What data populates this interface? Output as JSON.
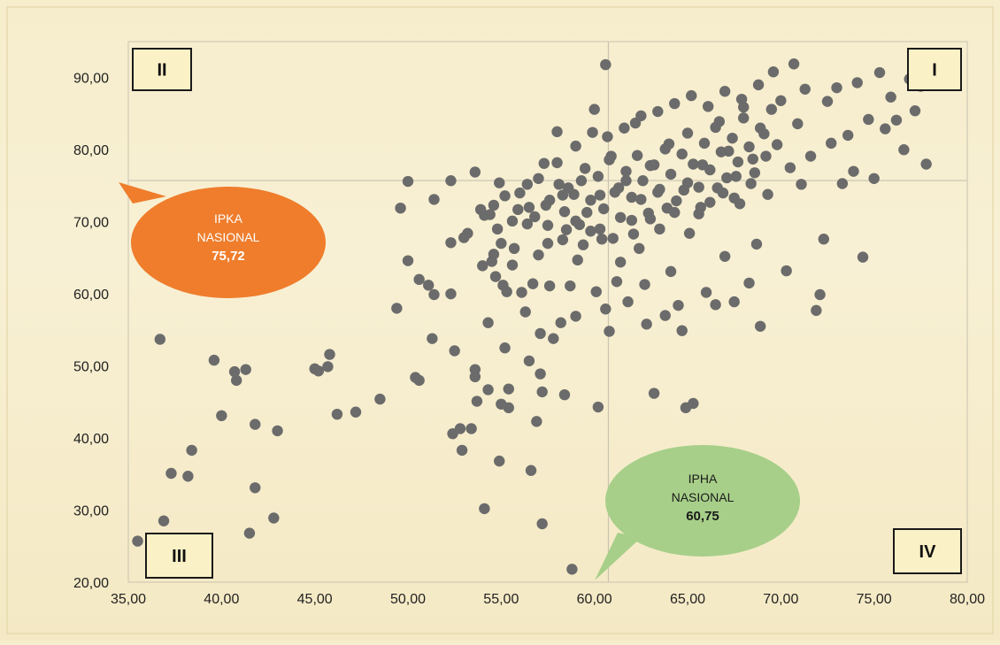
{
  "chart_data": {
    "type": "scatter",
    "xlim": [
      35,
      80
    ],
    "ylim": [
      20,
      95
    ],
    "x_ticks": [
      "35,00",
      "40,00",
      "45,00",
      "50,00",
      "55,00",
      "60,00",
      "65,00",
      "70,00",
      "75,00",
      "80,00"
    ],
    "y_ticks": [
      "20,00",
      "30,00",
      "40,00",
      "50,00",
      "60,00",
      "70,00",
      "80,00",
      "90,00"
    ],
    "grid": false,
    "point_color": "#6b6b6b",
    "reference_lines": {
      "x": 60.75,
      "y": 75.72
    },
    "quadrants": [
      {
        "id": "I",
        "label": "I",
        "corner": "top-right"
      },
      {
        "id": "II",
        "label": "II",
        "corner": "top-left"
      },
      {
        "id": "III",
        "label": "III",
        "corner": "bottom-left"
      },
      {
        "id": "IV",
        "label": "IV",
        "corner": "bottom-right"
      }
    ],
    "callouts": [
      {
        "id": "ipka",
        "lines": [
          "IPKA",
          "NASIONAL"
        ],
        "value": "75,72",
        "color": "#ef7d2c"
      },
      {
        "id": "ipha",
        "lines": [
          "IPHA",
          "NASIONAL"
        ],
        "value": "60,75",
        "color": "#a7cf89"
      }
    ],
    "points": [
      [
        35.5,
        25.7
      ],
      [
        36.9,
        28.5
      ],
      [
        36.7,
        53.7
      ],
      [
        37.3,
        35.1
      ],
      [
        38.2,
        34.7
      ],
      [
        38.4,
        38.3
      ],
      [
        39.6,
        50.8
      ],
      [
        40.0,
        43.1
      ],
      [
        40.7,
        49.2
      ],
      [
        40.8,
        48.0
      ],
      [
        41.3,
        49.5
      ],
      [
        41.5,
        26.8
      ],
      [
        41.8,
        41.9
      ],
      [
        41.8,
        33.1
      ],
      [
        42.8,
        28.9
      ],
      [
        43.0,
        41.0
      ],
      [
        45.0,
        49.6
      ],
      [
        45.2,
        49.3
      ],
      [
        45.7,
        49.9
      ],
      [
        45.8,
        51.6
      ],
      [
        46.2,
        43.3
      ],
      [
        47.2,
        43.6
      ],
      [
        48.5,
        45.4
      ],
      [
        49.4,
        58.0
      ],
      [
        49.6,
        71.9
      ],
      [
        50.0,
        75.6
      ],
      [
        50.0,
        64.6
      ],
      [
        50.4,
        48.4
      ],
      [
        50.6,
        48.0
      ],
      [
        50.6,
        62.0
      ],
      [
        51.1,
        61.2
      ],
      [
        51.3,
        53.8
      ],
      [
        51.4,
        59.9
      ],
      [
        51.4,
        73.1
      ],
      [
        52.3,
        75.7
      ],
      [
        52.3,
        67.1
      ],
      [
        52.3,
        60.0
      ],
      [
        52.4,
        40.6
      ],
      [
        52.5,
        52.1
      ],
      [
        52.8,
        41.3
      ],
      [
        52.9,
        38.3
      ],
      [
        53.0,
        67.8
      ],
      [
        53.2,
        68.4
      ],
      [
        53.4,
        41.3
      ],
      [
        53.6,
        76.9
      ],
      [
        53.6,
        49.5
      ],
      [
        53.6,
        48.5
      ],
      [
        53.7,
        45.1
      ],
      [
        53.9,
        71.7
      ],
      [
        54.0,
        63.9
      ],
      [
        54.1,
        70.9
      ],
      [
        54.1,
        30.2
      ],
      [
        54.3,
        56.0
      ],
      [
        54.3,
        46.7
      ],
      [
        54.5,
        64.5
      ],
      [
        54.6,
        65.5
      ],
      [
        54.6,
        72.3
      ],
      [
        54.7,
        62.4
      ],
      [
        54.9,
        75.4
      ],
      [
        54.9,
        36.8
      ],
      [
        55.0,
        67.0
      ],
      [
        55.0,
        44.7
      ],
      [
        55.1,
        61.2
      ],
      [
        55.2,
        52.5
      ],
      [
        55.3,
        60.3
      ],
      [
        55.4,
        46.8
      ],
      [
        55.4,
        44.2
      ],
      [
        55.6,
        64.0
      ],
      [
        55.7,
        66.3
      ],
      [
        55.9,
        71.7
      ],
      [
        56.1,
        60.2
      ],
      [
        56.3,
        57.5
      ],
      [
        56.4,
        75.2
      ],
      [
        56.4,
        69.7
      ],
      [
        56.5,
        50.7
      ],
      [
        56.6,
        35.5
      ],
      [
        56.7,
        61.4
      ],
      [
        56.8,
        70.7
      ],
      [
        56.9,
        42.3
      ],
      [
        57.0,
        65.4
      ],
      [
        57.1,
        54.5
      ],
      [
        57.1,
        48.9
      ],
      [
        57.2,
        46.4
      ],
      [
        57.2,
        28.1
      ],
      [
        57.3,
        78.1
      ],
      [
        57.4,
        72.3
      ],
      [
        57.5,
        67.0
      ],
      [
        57.6,
        61.1
      ],
      [
        57.8,
        53.8
      ],
      [
        58.0,
        82.5
      ],
      [
        58.2,
        56.0
      ],
      [
        58.3,
        73.7
      ],
      [
        58.3,
        67.5
      ],
      [
        58.4,
        46.0
      ],
      [
        58.6,
        74.7
      ],
      [
        58.7,
        61.1
      ],
      [
        58.8,
        21.8
      ],
      [
        59.0,
        70.1
      ],
      [
        59.0,
        56.9
      ],
      [
        59.1,
        64.7
      ],
      [
        59.3,
        75.7
      ],
      [
        59.6,
        71.3
      ],
      [
        59.8,
        68.7
      ],
      [
        60.0,
        85.6
      ],
      [
        60.1,
        60.3
      ],
      [
        60.2,
        44.3
      ],
      [
        60.3,
        73.7
      ],
      [
        60.4,
        67.6
      ],
      [
        60.6,
        91.8
      ],
      [
        60.6,
        57.9
      ],
      [
        60.8,
        54.8
      ],
      [
        60.9,
        79.1
      ],
      [
        61.2,
        61.7
      ],
      [
        61.3,
        74.7
      ],
      [
        61.4,
        64.4
      ],
      [
        61.7,
        75.7
      ],
      [
        61.8,
        58.9
      ],
      [
        62.0,
        70.2
      ],
      [
        62.2,
        83.7
      ],
      [
        62.4,
        66.3
      ],
      [
        62.5,
        73.1
      ],
      [
        62.7,
        61.3
      ],
      [
        62.8,
        55.8
      ],
      [
        63.0,
        77.8
      ],
      [
        63.2,
        46.2
      ],
      [
        63.4,
        74.1
      ],
      [
        63.5,
        69.0
      ],
      [
        63.8,
        57.0
      ],
      [
        64.0,
        80.8
      ],
      [
        64.1,
        63.1
      ],
      [
        64.3,
        71.3
      ],
      [
        64.5,
        58.4
      ],
      [
        64.7,
        54.9
      ],
      [
        64.9,
        44.2
      ],
      [
        65.0,
        75.4
      ],
      [
        65.1,
        68.4
      ],
      [
        65.3,
        44.8
      ],
      [
        65.6,
        71.1
      ],
      [
        65.8,
        77.9
      ],
      [
        66.0,
        60.2
      ],
      [
        66.2,
        72.7
      ],
      [
        66.5,
        58.5
      ],
      [
        66.7,
        83.9
      ],
      [
        66.9,
        74.0
      ],
      [
        67.0,
        65.2
      ],
      [
        67.2,
        79.8
      ],
      [
        67.5,
        58.9
      ],
      [
        67.6,
        76.3
      ],
      [
        67.8,
        72.5
      ],
      [
        68.0,
        85.9
      ],
      [
        68.3,
        61.5
      ],
      [
        68.5,
        78.7
      ],
      [
        68.7,
        66.9
      ],
      [
        68.9,
        55.5
      ],
      [
        69.1,
        82.2
      ],
      [
        69.3,
        73.8
      ],
      [
        69.6,
        90.8
      ],
      [
        69.8,
        80.7
      ],
      [
        70.0,
        86.8
      ],
      [
        70.3,
        63.2
      ],
      [
        70.5,
        77.5
      ],
      [
        70.7,
        91.9
      ],
      [
        70.9,
        83.6
      ],
      [
        71.1,
        75.2
      ],
      [
        71.3,
        88.4
      ],
      [
        71.6,
        79.1
      ],
      [
        71.9,
        57.7
      ],
      [
        72.1,
        59.9
      ],
      [
        72.3,
        67.6
      ],
      [
        72.5,
        86.7
      ],
      [
        72.7,
        80.9
      ],
      [
        73.0,
        88.6
      ],
      [
        73.3,
        75.3
      ],
      [
        73.6,
        82.0
      ],
      [
        73.9,
        77.0
      ],
      [
        74.1,
        89.3
      ],
      [
        74.4,
        65.1
      ],
      [
        74.7,
        84.2
      ],
      [
        75.0,
        76.0
      ],
      [
        75.3,
        90.7
      ],
      [
        75.6,
        82.9
      ],
      [
        75.9,
        87.3
      ],
      [
        76.2,
        84.1
      ],
      [
        76.6,
        80.0
      ],
      [
        76.9,
        89.8
      ],
      [
        77.2,
        85.4
      ],
      [
        77.5,
        88.8
      ],
      [
        77.8,
        78.0
      ],
      [
        58.1,
        75.2
      ],
      [
        58.4,
        71.4
      ],
      [
        58.9,
        73.8
      ],
      [
        59.2,
        69.6
      ],
      [
        59.5,
        77.4
      ],
      [
        59.8,
        73.0
      ],
      [
        60.2,
        76.3
      ],
      [
        60.5,
        71.8
      ],
      [
        60.8,
        78.6
      ],
      [
        61.1,
        74.1
      ],
      [
        61.4,
        70.6
      ],
      [
        61.7,
        77.0
      ],
      [
        62.0,
        73.4
      ],
      [
        62.3,
        79.2
      ],
      [
        62.6,
        75.7
      ],
      [
        62.9,
        71.2
      ],
      [
        63.2,
        77.9
      ],
      [
        63.5,
        74.5
      ],
      [
        63.8,
        80.1
      ],
      [
        64.1,
        76.6
      ],
      [
        64.4,
        72.9
      ],
      [
        64.7,
        79.4
      ],
      [
        65.0,
        82.3
      ],
      [
        65.3,
        78.0
      ],
      [
        65.6,
        74.8
      ],
      [
        65.9,
        80.9
      ],
      [
        66.2,
        77.2
      ],
      [
        66.5,
        83.1
      ],
      [
        66.8,
        79.7
      ],
      [
        67.1,
        76.1
      ],
      [
        67.4,
        81.6
      ],
      [
        67.7,
        78.3
      ],
      [
        68.0,
        84.4
      ],
      [
        68.3,
        80.4
      ],
      [
        68.6,
        76.8
      ],
      [
        68.9,
        83.0
      ],
      [
        69.2,
        79.1
      ],
      [
        69.5,
        85.6
      ],
      [
        57.6,
        73.0
      ],
      [
        58.0,
        78.2
      ],
      [
        58.5,
        68.9
      ],
      [
        59.0,
        80.5
      ],
      [
        59.4,
        66.8
      ],
      [
        59.9,
        82.4
      ],
      [
        60.3,
        69.0
      ],
      [
        60.7,
        81.8
      ],
      [
        61.0,
        67.7
      ],
      [
        61.6,
        83.0
      ],
      [
        62.1,
        68.3
      ],
      [
        62.5,
        84.7
      ],
      [
        63.0,
        70.4
      ],
      [
        63.4,
        85.3
      ],
      [
        63.9,
        71.9
      ],
      [
        64.3,
        86.4
      ],
      [
        64.8,
        74.4
      ],
      [
        65.2,
        87.5
      ],
      [
        65.7,
        72.0
      ],
      [
        66.1,
        86.0
      ],
      [
        66.6,
        74.7
      ],
      [
        67.0,
        88.1
      ],
      [
        67.5,
        73.3
      ],
      [
        67.9,
        87.0
      ],
      [
        68.4,
        75.3
      ],
      [
        68.8,
        89.0
      ],
      [
        56.0,
        74.0
      ],
      [
        56.5,
        72.0
      ],
      [
        57.0,
        76.0
      ],
      [
        57.5,
        69.5
      ],
      [
        55.6,
        70.1
      ],
      [
        55.2,
        73.6
      ],
      [
        54.8,
        69.0
      ],
      [
        54.4,
        71.0
      ]
    ]
  }
}
